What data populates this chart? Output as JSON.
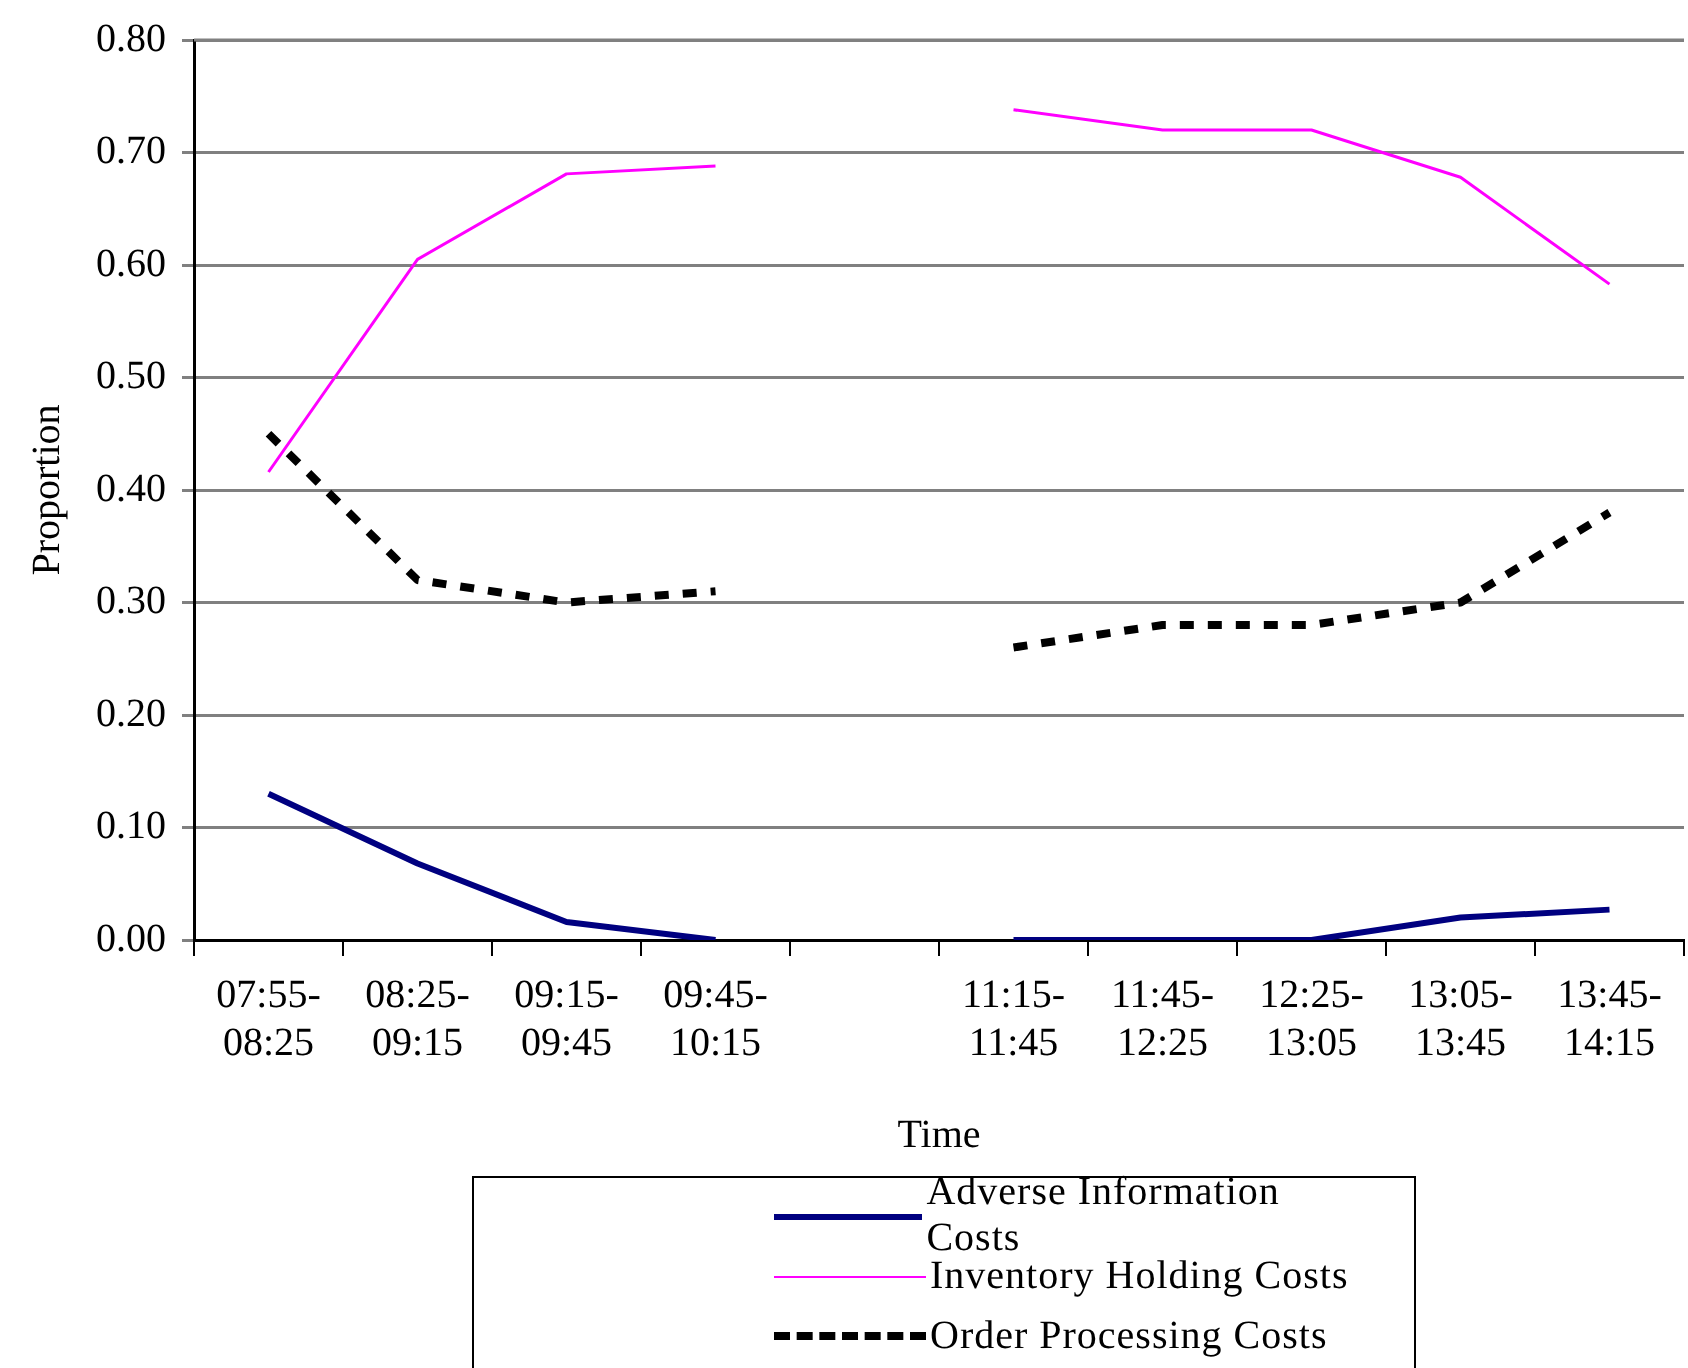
{
  "chart_data": {
    "type": "line",
    "xlabel": "Time",
    "ylabel": "Proportion",
    "categories": [
      "07:55-\n08:25",
      "08:25-\n09:15",
      "09:15-\n09:45",
      "09:45-\n10:15",
      null,
      "11:15-\n11:45",
      "11:45-\n12:25",
      "12:25-\n13:05",
      "13:05-\n13:45",
      "13:45-\n14:15"
    ],
    "series": [
      {
        "name": "Adverse Information Costs",
        "color": "#000080",
        "line_style": "solid",
        "values": [
          0.13,
          0.068,
          0.016,
          0.0,
          null,
          0.0,
          0.0,
          0.0,
          0.02,
          0.027
        ]
      },
      {
        "name": "Inventory Holding Costs",
        "color": "#ff00ff",
        "line_style": "solid",
        "values": [
          0.416,
          0.605,
          0.681,
          0.688,
          null,
          0.738,
          0.72,
          0.72,
          0.678,
          0.583
        ]
      },
      {
        "name": "Order Processing Costs",
        "color": "#000000",
        "line_style": "dashed",
        "values": [
          0.45,
          0.32,
          0.3,
          0.31,
          null,
          0.26,
          0.28,
          0.28,
          0.3,
          0.38
        ]
      }
    ],
    "ylim": [
      0,
      0.8
    ],
    "yticks": [
      {
        "value": 0,
        "label": "0.00"
      },
      {
        "value": 0.1,
        "label": "0.10"
      },
      {
        "value": 0.2,
        "label": "0.20"
      },
      {
        "value": 0.3,
        "label": "0.30"
      },
      {
        "value": 0.4,
        "label": "0.40"
      },
      {
        "value": 0.5,
        "label": "0.50"
      },
      {
        "value": 0.6,
        "label": "0.60"
      },
      {
        "value": 0.7,
        "label": "0.70"
      },
      {
        "value": 0.8,
        "label": "0.80"
      }
    ],
    "grid": "y",
    "legend": "bottom",
    "marker": "none"
  }
}
